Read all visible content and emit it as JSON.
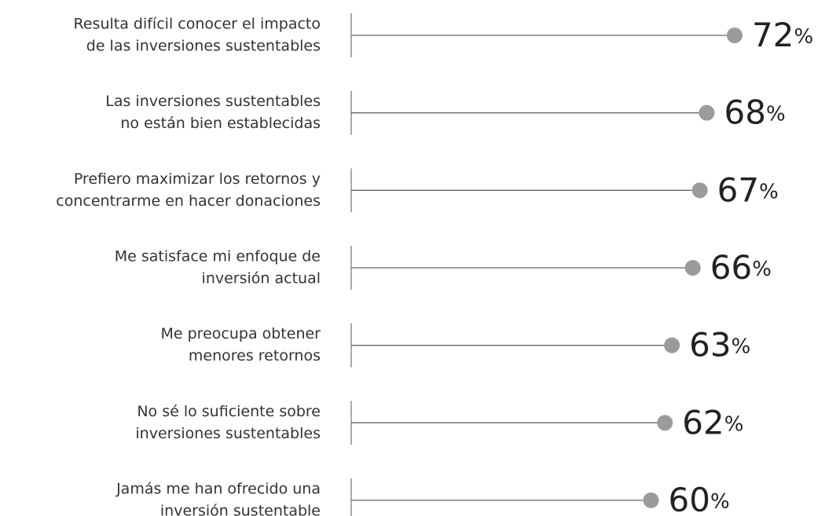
{
  "chart_data": {
    "type": "lollipop",
    "categories": [
      [
        "Resulta difícil conocer el impacto",
        "de las inversiones sustentables"
      ],
      [
        "Las inversiones sustentables",
        "no están bien establecidas"
      ],
      [
        "Prefiero maximizar los retornos y",
        "concentrarme en hacer donaciones"
      ],
      [
        "Me satisface mi enfoque de",
        "inversión actual"
      ],
      [
        "Me preocupa obtener",
        "menores retornos"
      ],
      [
        "No sé lo suficiente sobre",
        "inversiones sustentables"
      ],
      [
        "Jamás me han ofrecido una",
        "inversión sustentable"
      ]
    ],
    "values": [
      72,
      68,
      67,
      66,
      63,
      62,
      60
    ],
    "value_labels": [
      "72%",
      "68%",
      "67%",
      "66%",
      "63%",
      "62%",
      "60%"
    ],
    "color": "#9b9b9b",
    "xlim": [
      17,
      80
    ]
  }
}
